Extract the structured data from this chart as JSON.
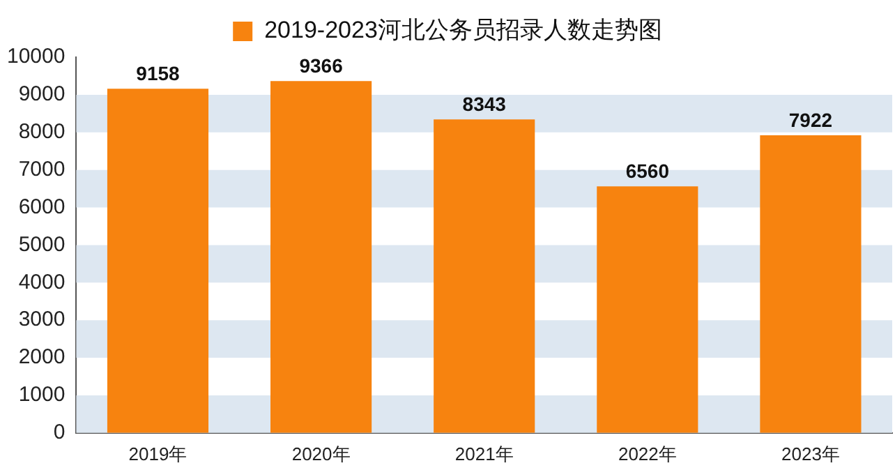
{
  "chart_data": {
    "type": "bar",
    "categories": [
      "2019年",
      "2020年",
      "2021年",
      "2022年",
      "2023年"
    ],
    "series": [
      {
        "name": "2019-2023河北公务员招录人数走势图",
        "color": "#f7830f",
        "values": [
          9158,
          9366,
          8343,
          6560,
          7922
        ]
      }
    ],
    "ylim": [
      0,
      10000
    ],
    "yticks": [
      0,
      1000,
      2000,
      3000,
      4000,
      5000,
      6000,
      7000,
      8000,
      9000,
      10000
    ],
    "bands": [
      {
        "axis": "y",
        "from": 0,
        "to": 1000,
        "color": "#dde7f1"
      },
      {
        "axis": "y",
        "from": 2000,
        "to": 3000,
        "color": "#dde7f1"
      },
      {
        "axis": "y",
        "from": 4000,
        "to": 5000,
        "color": "#dde7f1"
      },
      {
        "axis": "y",
        "from": 6000,
        "to": 7000,
        "color": "#dde7f1"
      },
      {
        "axis": "y",
        "from": 8000,
        "to": 9000,
        "color": "#dde7f1"
      }
    ],
    "data_labels": true,
    "legend": "top",
    "grid": false
  }
}
